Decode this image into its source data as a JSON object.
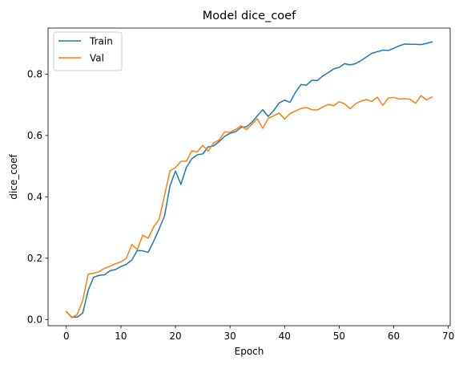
{
  "chart_data": {
    "type": "line",
    "title": "Model dice_coef",
    "xlabel": "Epoch",
    "ylabel": "dice_coef",
    "xlim": [
      -3.35,
      70.35
    ],
    "ylim": [
      -0.02,
      0.95
    ],
    "xticks": [
      0,
      10,
      20,
      30,
      40,
      50,
      60,
      70
    ],
    "yticks": [
      0.0,
      0.2,
      0.4,
      0.6,
      0.8
    ],
    "ytick_labels": [
      "0.0",
      "0.2",
      "0.4",
      "0.6",
      "0.8"
    ],
    "legend": "upper-left",
    "grid": false,
    "series": [
      {
        "name": "Train",
        "color": "#1f77b4",
        "x": [
          0,
          1,
          2,
          3,
          4,
          5,
          6,
          7,
          8,
          9,
          10,
          11,
          12,
          13,
          14,
          15,
          16,
          17,
          18,
          19,
          20,
          21,
          22,
          23,
          24,
          25,
          26,
          27,
          28,
          29,
          30,
          31,
          32,
          33,
          34,
          35,
          36,
          37,
          38,
          39,
          40,
          41,
          42,
          43,
          44,
          45,
          46,
          47,
          48,
          49,
          50,
          51,
          52,
          53,
          54,
          55,
          56,
          57,
          58,
          59,
          60,
          61,
          62,
          63,
          64,
          65,
          66,
          67
        ],
        "values": [
          0.026,
          0.008,
          0.008,
          0.021,
          0.095,
          0.138,
          0.144,
          0.146,
          0.159,
          0.163,
          0.173,
          0.18,
          0.194,
          0.225,
          0.224,
          0.219,
          0.255,
          0.295,
          0.338,
          0.436,
          0.484,
          0.441,
          0.496,
          0.524,
          0.537,
          0.54,
          0.563,
          0.566,
          0.58,
          0.597,
          0.607,
          0.612,
          0.626,
          0.628,
          0.643,
          0.664,
          0.684,
          0.662,
          0.681,
          0.706,
          0.715,
          0.708,
          0.741,
          0.766,
          0.764,
          0.78,
          0.779,
          0.794,
          0.805,
          0.817,
          0.822,
          0.834,
          0.83,
          0.834,
          0.844,
          0.856,
          0.868,
          0.873,
          0.878,
          0.877,
          0.884,
          0.892,
          0.898,
          0.897,
          0.897,
          0.896,
          0.9,
          0.905
        ]
      },
      {
        "name": "Val",
        "color": "#ff7f0e",
        "x": [
          0,
          1,
          2,
          3,
          4,
          5,
          6,
          7,
          8,
          9,
          10,
          11,
          12,
          13,
          14,
          15,
          16,
          17,
          18,
          19,
          20,
          21,
          22,
          23,
          24,
          25,
          26,
          27,
          28,
          29,
          30,
          31,
          32,
          33,
          34,
          35,
          36,
          37,
          38,
          39,
          40,
          41,
          42,
          43,
          44,
          45,
          46,
          47,
          48,
          49,
          50,
          51,
          52,
          53,
          54,
          55,
          56,
          57,
          58,
          59,
          60,
          61,
          62,
          63,
          64,
          65,
          66,
          67
        ],
        "values": [
          0.026,
          0.006,
          0.017,
          0.062,
          0.148,
          0.151,
          0.156,
          0.167,
          0.174,
          0.182,
          0.188,
          0.2,
          0.245,
          0.228,
          0.275,
          0.265,
          0.302,
          0.327,
          0.405,
          0.485,
          0.495,
          0.516,
          0.516,
          0.55,
          0.546,
          0.568,
          0.549,
          0.576,
          0.585,
          0.612,
          0.61,
          0.619,
          0.632,
          0.619,
          0.636,
          0.655,
          0.623,
          0.656,
          0.664,
          0.673,
          0.654,
          0.671,
          0.68,
          0.688,
          0.691,
          0.684,
          0.683,
          0.693,
          0.701,
          0.697,
          0.71,
          0.703,
          0.687,
          0.703,
          0.712,
          0.717,
          0.711,
          0.725,
          0.698,
          0.722,
          0.724,
          0.719,
          0.72,
          0.718,
          0.705,
          0.73,
          0.716,
          0.725
        ]
      }
    ]
  }
}
